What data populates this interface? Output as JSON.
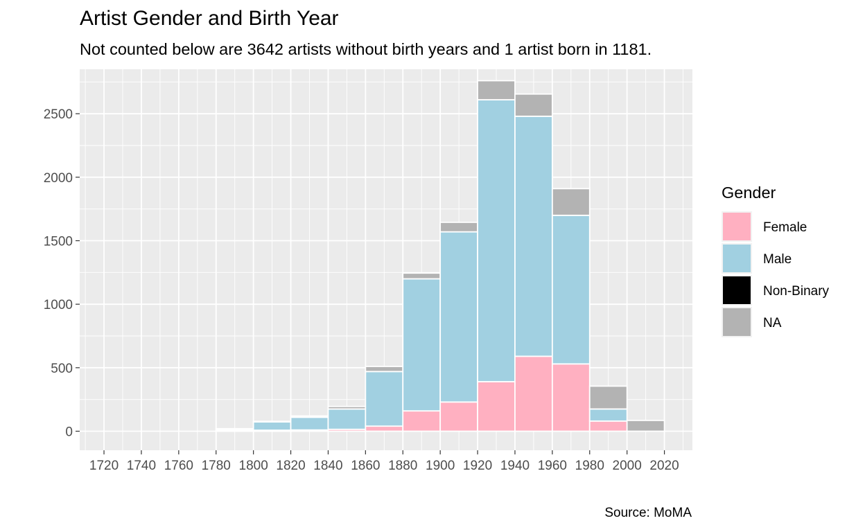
{
  "chart_data": {
    "type": "bar",
    "stacked": true,
    "title": "Artist Gender and Birth Year",
    "subtitle": "Not counted below are 3642 artists without birth years and 1 artist born in 1181.",
    "caption": "Source: MoMA",
    "xlabel": "",
    "ylabel": "",
    "bin_width": 20,
    "bin_starts": [
      1780,
      1800,
      1820,
      1840,
      1860,
      1880,
      1900,
      1920,
      1940,
      1960,
      1980,
      2000
    ],
    "x_ticks": [
      1720,
      1740,
      1760,
      1780,
      1800,
      1820,
      1840,
      1860,
      1880,
      1900,
      1920,
      1940,
      1960,
      1980,
      2000,
      2020
    ],
    "y_ticks": [
      0,
      500,
      1000,
      1500,
      2000,
      2500
    ],
    "xlim": [
      1707,
      2035
    ],
    "ylim": [
      -150,
      2850
    ],
    "grid": true,
    "legend_position": "right",
    "legend_title": "Gender",
    "series": [
      {
        "name": "Female",
        "color": "#FFB0C1",
        "values": [
          5,
          8,
          10,
          15,
          40,
          160,
          230,
          390,
          590,
          530,
          80,
          0
        ]
      },
      {
        "name": "Male",
        "color": "#A1D0E1",
        "values": [
          10,
          65,
          100,
          160,
          430,
          1040,
          1340,
          2220,
          1890,
          1170,
          95,
          0
        ]
      },
      {
        "name": "Non-Binary",
        "color": "#000000",
        "values": [
          0,
          0,
          0,
          0,
          0,
          0,
          0,
          0,
          0,
          0,
          0,
          0
        ]
      },
      {
        "name": "NA",
        "color": "#B3B3B3",
        "values": [
          5,
          5,
          10,
          20,
          40,
          45,
          75,
          150,
          175,
          210,
          180,
          85
        ]
      }
    ]
  }
}
